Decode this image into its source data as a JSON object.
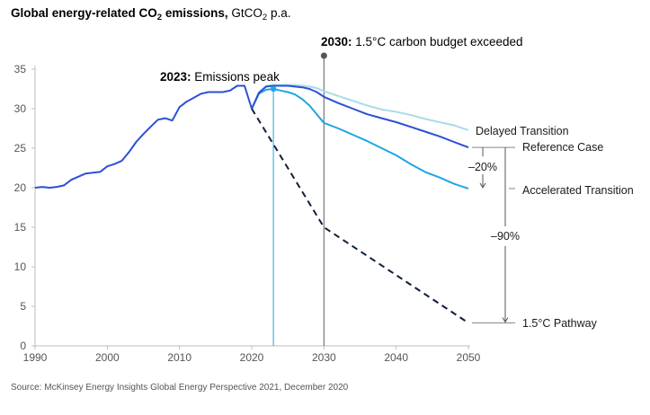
{
  "chart_data": {
    "type": "line",
    "title_bold": "Global energy-related CO",
    "title_bold_sub": "2",
    "title_bold_tail": " emissions, ",
    "title_unit": "GtCO",
    "title_unit_sub": "2",
    "title_unit_tail": " p.a.",
    "source": "Source: McKinsey Energy Insights Global Energy Perspective 2021, December 2020",
    "xlim": [
      1990,
      2050
    ],
    "ylim": [
      0,
      35
    ],
    "x_ticks": [
      "1990",
      "2000",
      "2010",
      "2020",
      "2030",
      "2040",
      "2050"
    ],
    "y_ticks": [
      "0",
      "5",
      "10",
      "15",
      "20",
      "25",
      "30",
      "35"
    ],
    "colors": {
      "historical": "#2b4fd8",
      "reference": "#2b4fd8",
      "accelerated": "#1fa6e3",
      "delayed": "#a9dcea",
      "pathway": "#0f1e3a",
      "axis": "#bdbdbd"
    },
    "historical": {
      "x": [
        1990,
        1991,
        1992,
        1993,
        1994,
        1995,
        1996,
        1997,
        1998,
        1999,
        2000,
        2001,
        2002,
        2003,
        2004,
        2005,
        2006,
        2007,
        2008,
        2009,
        2010,
        2011,
        2012,
        2013,
        2014,
        2015,
        2016,
        2017,
        2018,
        2019,
        2020
      ],
      "y": [
        20.0,
        20.1,
        20.0,
        20.1,
        20.3,
        21.0,
        21.4,
        21.8,
        21.9,
        22.0,
        22.7,
        23.0,
        23.4,
        24.5,
        25.8,
        26.8,
        27.7,
        28.6,
        28.8,
        28.5,
        30.2,
        30.9,
        31.4,
        31.9,
        32.1,
        32.1,
        32.1,
        32.3,
        32.9,
        32.9,
        30.0
      ]
    },
    "series": [
      {
        "name": "Reference Case",
        "key": "reference",
        "x": [
          2020,
          2021,
          2022,
          2023,
          2024,
          2025,
          2026,
          2027,
          2028,
          2029,
          2030,
          2032,
          2034,
          2036,
          2038,
          2040,
          2042,
          2044,
          2046,
          2048,
          2050
        ],
        "y": [
          30.0,
          32.0,
          32.8,
          32.9,
          32.9,
          32.9,
          32.8,
          32.7,
          32.5,
          32.1,
          31.5,
          30.7,
          30.0,
          29.3,
          28.8,
          28.3,
          27.7,
          27.1,
          26.5,
          25.8,
          25.1
        ]
      },
      {
        "name": "Accelerated Transition",
        "key": "accelerated",
        "x": [
          2020,
          2021,
          2022,
          2023,
          2024,
          2025,
          2026,
          2027,
          2028,
          2029,
          2030,
          2032,
          2034,
          2036,
          2038,
          2040,
          2042,
          2044,
          2046,
          2048,
          2050
        ],
        "y": [
          30.0,
          31.9,
          32.4,
          32.5,
          32.3,
          32.1,
          31.8,
          31.2,
          30.4,
          29.3,
          28.2,
          27.5,
          26.7,
          25.9,
          25.0,
          24.1,
          23.0,
          22.0,
          21.3,
          20.5,
          19.9
        ]
      },
      {
        "name": "Delayed Transition",
        "key": "delayed",
        "x": [
          2020,
          2021,
          2022,
          2023,
          2024,
          2025,
          2026,
          2027,
          2028,
          2029,
          2030,
          2032,
          2034,
          2036,
          2038,
          2040,
          2042,
          2044,
          2046,
          2048,
          2050
        ],
        "y": [
          30.0,
          32.1,
          32.9,
          33.0,
          33.0,
          33.0,
          33.0,
          32.9,
          32.8,
          32.6,
          32.2,
          31.6,
          31.0,
          30.4,
          29.9,
          29.6,
          29.2,
          28.7,
          28.3,
          27.9,
          27.3
        ]
      },
      {
        "name": "1.5°C Pathway",
        "key": "pathway",
        "dashed": true,
        "x": [
          2020,
          2030,
          2050
        ],
        "y": [
          30.0,
          15.0,
          2.9
        ]
      }
    ],
    "annotations": {
      "peak_year_bold": "2023:",
      "peak_text": " Emissions peak",
      "peak_x": 2023,
      "peak_y": 32.5,
      "budget_year_bold": "2030:",
      "budget_text": " 1.5°C carbon budget exceeded",
      "budget_x": 2030,
      "pct_reference_to_accelerated": "–20%",
      "pct_reference_to_pathway": "–90%"
    }
  }
}
